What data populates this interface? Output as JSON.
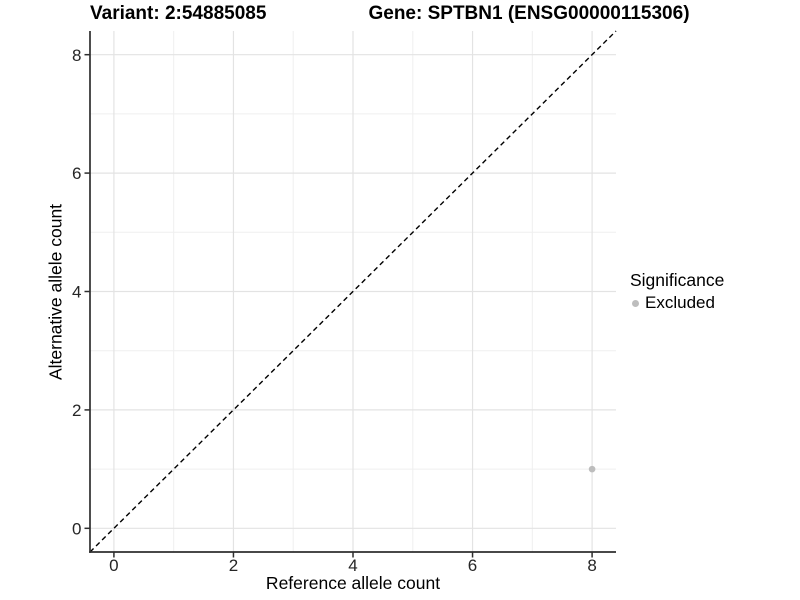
{
  "chart_data": {
    "type": "scatter",
    "titles": {
      "left": "Variant: 2:54885085",
      "right": "Gene: SPTBN1 (ENSG00000115306)"
    },
    "xlabel": "Reference allele count",
    "ylabel": "Alternative allele count",
    "xlim": [
      -0.4,
      8.4
    ],
    "ylim": [
      -0.4,
      8.4
    ],
    "x_major_ticks": [
      0,
      2,
      4,
      6,
      8
    ],
    "y_major_ticks": [
      0,
      2,
      4,
      6,
      8
    ],
    "x_minor_gridlines": [
      1,
      3,
      5,
      7
    ],
    "y_minor_gridlines": [
      1,
      3,
      5,
      7
    ],
    "grid": "on",
    "identity_line": {
      "style": "dashed",
      "x1": -0.4,
      "y1": -0.4,
      "x2": 8.4,
      "y2": 8.4
    },
    "series": [
      {
        "name": "Excluded",
        "color": "#bdbdbd",
        "points": [
          {
            "x": 8,
            "y": 1
          }
        ]
      }
    ],
    "legend": {
      "title": "Significance",
      "position": "right",
      "items": [
        {
          "label": "Excluded",
          "color": "#bdbdbd"
        }
      ]
    }
  },
  "colors": {
    "background": "#ffffff",
    "axis": "#2e2e2e",
    "major_grid": "#e3e3e3",
    "minor_grid": "#efefef",
    "dashed_line": "#000000",
    "tick_label": "#262626",
    "point": "#bdbdbd"
  }
}
